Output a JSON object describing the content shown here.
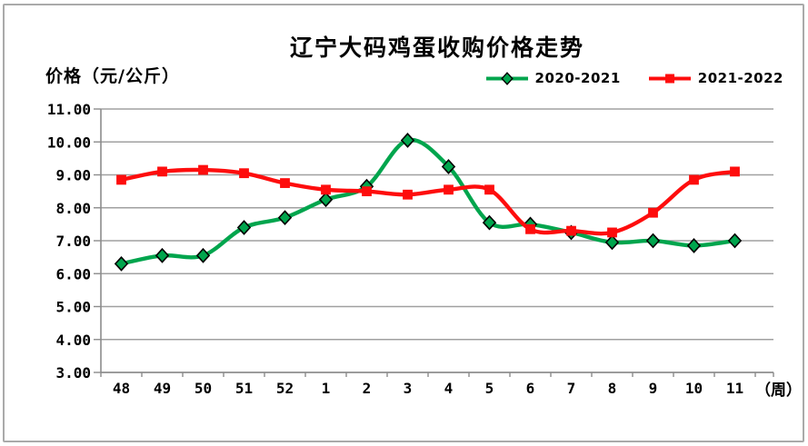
{
  "title": "辽宁大码鸡蛋收购价格走势",
  "y_axis_title": "价格（元/公斤）",
  "x_axis_unit_label": "（周）",
  "legend": {
    "items": [
      {
        "label": "2020-2021",
        "marker": "diamond",
        "color": "#00a54d"
      },
      {
        "label": "2021-2022",
        "marker": "square",
        "color": "#fe0d0d"
      }
    ]
  },
  "colors": {
    "series_green": "#00a54d",
    "series_red": "#fe0d0d",
    "marker_outline": "#000000",
    "gridline": "#a0a0a0",
    "axis": "#8c8c8c",
    "frame_border": "#aaaaaa",
    "text": "#000000",
    "background": "#ffffff"
  },
  "chart_data": {
    "type": "line",
    "title": "辽宁大码鸡蛋收购价格走势",
    "xlabel": "（周）",
    "ylabel": "价格（元/公斤）",
    "categories": [
      "48",
      "49",
      "50",
      "51",
      "52",
      "1",
      "2",
      "3",
      "4",
      "5",
      "6",
      "7",
      "8",
      "9",
      "10",
      "11"
    ],
    "series": [
      {
        "name": "2020-2021",
        "marker": "diamond",
        "color": "#00a54d",
        "values": [
          6.3,
          6.55,
          6.55,
          7.4,
          7.7,
          8.25,
          8.65,
          10.05,
          9.25,
          7.55,
          7.5,
          7.25,
          6.95,
          7.0,
          6.85,
          7.0
        ]
      },
      {
        "name": "2021-2022",
        "marker": "square",
        "color": "#fe0d0d",
        "values": [
          8.85,
          9.1,
          9.15,
          9.05,
          8.75,
          8.55,
          8.5,
          8.4,
          8.55,
          8.55,
          7.35,
          7.3,
          7.25,
          7.85,
          8.85,
          9.1
        ]
      }
    ],
    "ylim": [
      3.0,
      11.0
    ],
    "ytick_step": 1.0,
    "ytick_labels": [
      "11.00",
      "10.00",
      "9.00",
      "8.00",
      "7.00",
      "6.00",
      "5.00",
      "4.00",
      "3.00"
    ],
    "grid": true,
    "smooth": true,
    "legend_position": "top-right"
  }
}
